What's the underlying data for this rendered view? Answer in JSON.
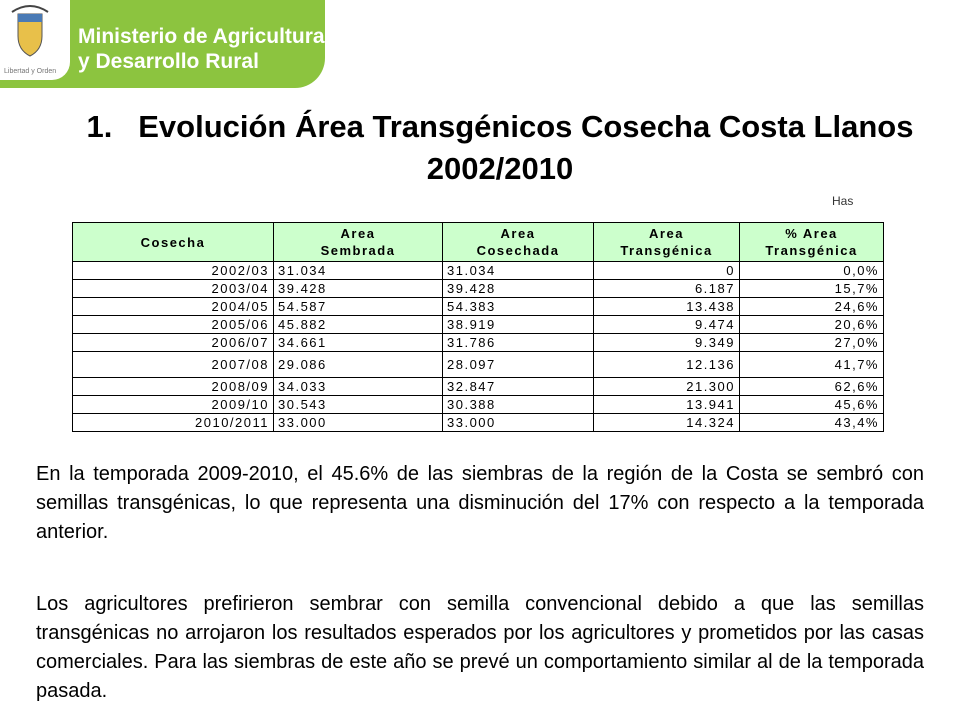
{
  "header": {
    "org_line1": "Ministerio de Agricultura",
    "org_line2": "y Desarrollo Rural",
    "motto": "Libertad y Orden"
  },
  "title": {
    "number": "1.",
    "text": "Evolución Área Transgénicos Cosecha Costa Llanos 2002/2010"
  },
  "unit": "Has",
  "table": {
    "header": [
      [
        "Cosecha"
      ],
      [
        "Area",
        "Sembrada"
      ],
      [
        "Area",
        "Cosechada"
      ],
      [
        "Area",
        "Transgénica"
      ],
      [
        "% Area",
        "Transgénica"
      ]
    ],
    "rows": [
      [
        "2002/03",
        "31.034",
        "31.034",
        "0",
        "0,0%"
      ],
      [
        "2003/04",
        "39.428",
        "39.428",
        "6.187",
        "15,7%"
      ],
      [
        "2004/05",
        "54.587",
        "54.383",
        "13.438",
        "24,6%"
      ],
      [
        "2005/06",
        "45.882",
        "38.919",
        "9.474",
        "20,6%"
      ],
      [
        "2006/07",
        "34.661",
        "31.786",
        "9.349",
        "27,0%"
      ],
      [
        "2007/08",
        "29.086",
        "28.097",
        "12.136",
        "41,7%"
      ],
      [
        "2008/09",
        "34.033",
        "32.847",
        "21.300",
        "62,6%"
      ],
      [
        "2009/10",
        "30.543",
        "30.388",
        "13.941",
        "45,6%"
      ],
      [
        "2010/2011",
        "33.000",
        "33.000",
        "14.324",
        "43,4%"
      ]
    ]
  },
  "paragraphs": [
    "En la temporada 2009-2010, el 45.6% de las siembras de la región de la Costa  se sembró con semillas transgénicas, lo que representa una disminución del 17% con respecto a la temporada anterior.",
    "Los agricultores prefirieron sembrar con semilla convencional debido a que las semillas transgénicas no arrojaron los resultados esperados por los agricultores y prometidos por las casas comerciales. Para las siembras de este año se prevé un comportamiento similar al de la temporada pasada."
  ]
}
